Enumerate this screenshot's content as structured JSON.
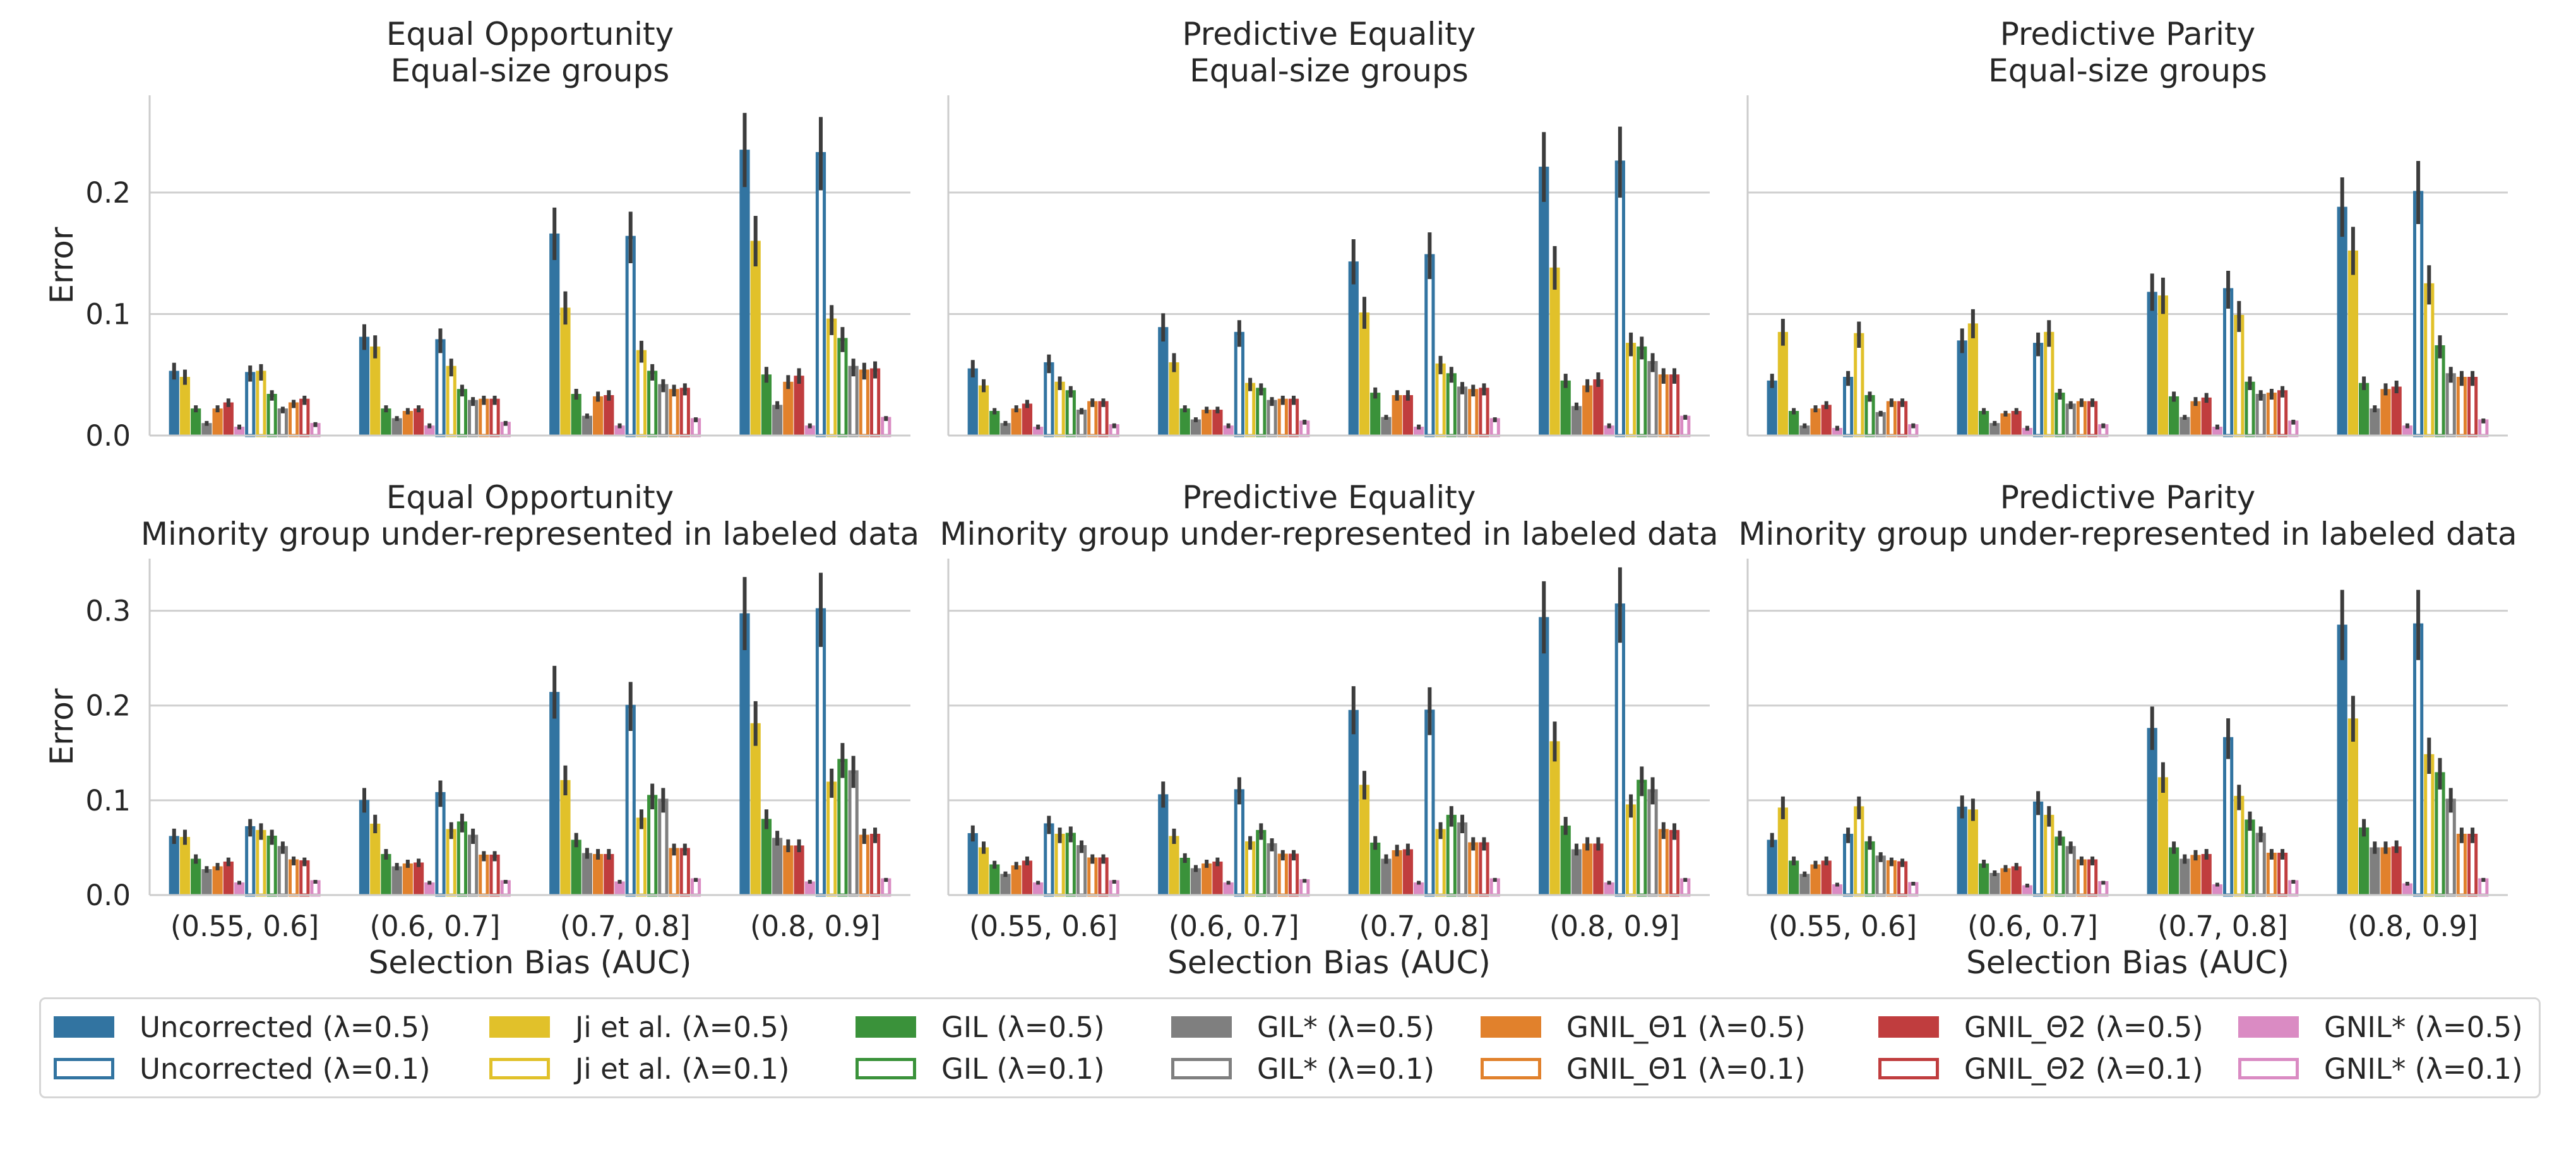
{
  "chart_data": {
    "type": "bar",
    "layout": "2x3 facet grid",
    "categories": [
      "(0.55, 0.6]",
      "(0.6, 0.7]",
      "(0.7, 0.8]",
      "(0.8, 0.9]"
    ],
    "xlabel": "Selection Bias (AUC)",
    "ylabel": "Error",
    "grid": "horizontal",
    "legend_position": "bottom",
    "rows": [
      {
        "ylim": [
          0,
          0.28
        ],
        "yticks": [
          0.0,
          0.1,
          0.2
        ],
        "ytick_labels": [
          "0.0",
          "0.1",
          "0.2"
        ]
      },
      {
        "ylim": [
          0,
          0.355
        ],
        "yticks": [
          0.0,
          0.1,
          0.2,
          0.3
        ],
        "ytick_labels": [
          "0.0",
          "0.1",
          "0.2",
          "0.3"
        ]
      }
    ],
    "series": [
      {
        "name": "Uncorrected (λ=0.5)",
        "color": "#3274a1",
        "style": "filled"
      },
      {
        "name": "Uncorrected (λ=0.1)",
        "color": "#3274a1",
        "style": "outline"
      },
      {
        "name": "Ji et al. (λ=0.5)",
        "color": "#e1c12a",
        "style": "filled"
      },
      {
        "name": "Ji et al. (λ=0.1)",
        "color": "#e1c12a",
        "style": "outline"
      },
      {
        "name": "GIL (λ=0.5)",
        "color": "#3a923a",
        "style": "filled"
      },
      {
        "name": "GIL (λ=0.1)",
        "color": "#3a923a",
        "style": "outline"
      },
      {
        "name": "GIL* (λ=0.5)",
        "color": "#7f7f7f",
        "style": "filled"
      },
      {
        "name": "GIL* (λ=0.1)",
        "color": "#7f7f7f",
        "style": "outline"
      },
      {
        "name": "GNIL_Θ1 (λ=0.5)",
        "color": "#e1812c",
        "style": "filled"
      },
      {
        "name": "GNIL_Θ1 (λ=0.1)",
        "color": "#e1812c",
        "style": "outline"
      },
      {
        "name": "GNIL_Θ2 (λ=0.5)",
        "color": "#c03d3e",
        "style": "filled"
      },
      {
        "name": "GNIL_Θ2 (λ=0.1)",
        "color": "#c03d3e",
        "style": "outline"
      },
      {
        "name": "GNIL* (λ=0.5)",
        "color": "#da8bc3",
        "style": "filled"
      },
      {
        "name": "GNIL* (λ=0.1)",
        "color": "#da8bc3",
        "style": "outline"
      }
    ],
    "panels": [
      {
        "title": [
          "Equal Opportunity",
          "Equal-size groups"
        ],
        "values": [
          [
            0.053,
            0.048,
            0.022,
            0.01,
            0.022,
            0.027,
            0.007,
            0.051,
            0.052,
            0.033,
            0.021,
            0.026,
            0.029,
            0.009
          ],
          [
            0.081,
            0.073,
            0.022,
            0.014,
            0.02,
            0.022,
            0.008,
            0.078,
            0.056,
            0.037,
            0.028,
            0.029,
            0.029,
            0.01
          ],
          [
            0.166,
            0.105,
            0.034,
            0.016,
            0.032,
            0.033,
            0.008,
            0.163,
            0.069,
            0.052,
            0.041,
            0.037,
            0.038,
            0.013
          ],
          [
            0.235,
            0.16,
            0.05,
            0.025,
            0.044,
            0.049,
            0.008,
            0.232,
            0.095,
            0.079,
            0.056,
            0.053,
            0.054,
            0.014
          ]
        ]
      },
      {
        "title": [
          "Predictive Equality",
          "Equal-size groups"
        ],
        "values": [
          [
            0.055,
            0.041,
            0.02,
            0.01,
            0.022,
            0.026,
            0.007,
            0.059,
            0.043,
            0.036,
            0.02,
            0.027,
            0.027,
            0.008
          ],
          [
            0.089,
            0.06,
            0.022,
            0.013,
            0.021,
            0.021,
            0.008,
            0.084,
            0.042,
            0.038,
            0.028,
            0.029,
            0.029,
            0.011
          ],
          [
            0.143,
            0.101,
            0.035,
            0.015,
            0.033,
            0.033,
            0.007,
            0.148,
            0.058,
            0.05,
            0.039,
            0.037,
            0.038,
            0.013
          ],
          [
            0.221,
            0.138,
            0.045,
            0.024,
            0.041,
            0.046,
            0.008,
            0.225,
            0.075,
            0.072,
            0.06,
            0.049,
            0.049,
            0.015
          ]
        ]
      },
      {
        "title": [
          "Predictive Parity",
          "Equal-size groups"
        ],
        "values": [
          [
            0.045,
            0.085,
            0.02,
            0.008,
            0.022,
            0.025,
            0.006,
            0.047,
            0.083,
            0.032,
            0.018,
            0.027,
            0.027,
            0.008
          ],
          [
            0.078,
            0.092,
            0.02,
            0.01,
            0.018,
            0.02,
            0.006,
            0.075,
            0.084,
            0.034,
            0.025,
            0.027,
            0.027,
            0.008
          ],
          [
            0.118,
            0.115,
            0.032,
            0.015,
            0.028,
            0.031,
            0.007,
            0.12,
            0.098,
            0.043,
            0.033,
            0.034,
            0.036,
            0.011
          ],
          [
            0.188,
            0.152,
            0.043,
            0.022,
            0.038,
            0.04,
            0.008,
            0.2,
            0.124,
            0.073,
            0.05,
            0.047,
            0.047,
            0.012
          ]
        ]
      },
      {
        "title": [
          "Equal Opportunity",
          "Minority group under-represented in labeled data"
        ],
        "values": [
          [
            0.062,
            0.061,
            0.038,
            0.027,
            0.03,
            0.035,
            0.013,
            0.071,
            0.067,
            0.061,
            0.05,
            0.036,
            0.035,
            0.014
          ],
          [
            0.1,
            0.075,
            0.043,
            0.03,
            0.033,
            0.034,
            0.013,
            0.107,
            0.068,
            0.076,
            0.062,
            0.041,
            0.041,
            0.014
          ],
          [
            0.214,
            0.121,
            0.058,
            0.044,
            0.043,
            0.043,
            0.014,
            0.199,
            0.08,
            0.104,
            0.1,
            0.048,
            0.048,
            0.016
          ],
          [
            0.297,
            0.181,
            0.08,
            0.06,
            0.052,
            0.052,
            0.014,
            0.301,
            0.118,
            0.142,
            0.13,
            0.062,
            0.063,
            0.016
          ]
        ]
      },
      {
        "title": [
          "Predictive Equality",
          "Minority group under-represented in labeled data"
        ],
        "values": [
          [
            0.065,
            0.05,
            0.032,
            0.022,
            0.031,
            0.036,
            0.013,
            0.074,
            0.063,
            0.064,
            0.051,
            0.038,
            0.038,
            0.014
          ],
          [
            0.106,
            0.062,
            0.039,
            0.028,
            0.033,
            0.035,
            0.013,
            0.11,
            0.055,
            0.067,
            0.053,
            0.042,
            0.042,
            0.015
          ],
          [
            0.195,
            0.116,
            0.055,
            0.038,
            0.047,
            0.048,
            0.013,
            0.194,
            0.068,
            0.083,
            0.075,
            0.054,
            0.054,
            0.016
          ],
          [
            0.293,
            0.162,
            0.073,
            0.048,
            0.054,
            0.054,
            0.013,
            0.306,
            0.094,
            0.12,
            0.11,
            0.068,
            0.067,
            0.016
          ]
        ]
      },
      {
        "title": [
          "Predictive Parity",
          "Minority group under-represented in labeled data"
        ],
        "values": [
          [
            0.058,
            0.092,
            0.036,
            0.022,
            0.032,
            0.036,
            0.011,
            0.063,
            0.092,
            0.055,
            0.04,
            0.035,
            0.034,
            0.012
          ],
          [
            0.093,
            0.09,
            0.033,
            0.023,
            0.028,
            0.03,
            0.01,
            0.097,
            0.083,
            0.06,
            0.05,
            0.036,
            0.036,
            0.013
          ],
          [
            0.176,
            0.124,
            0.05,
            0.038,
            0.042,
            0.043,
            0.011,
            0.165,
            0.103,
            0.078,
            0.064,
            0.043,
            0.043,
            0.014
          ],
          [
            0.285,
            0.186,
            0.071,
            0.05,
            0.05,
            0.051,
            0.012,
            0.285,
            0.147,
            0.128,
            0.1,
            0.063,
            0.063,
            0.016
          ]
        ]
      }
    ],
    "series_order_in_group": [
      "Uncorrected (λ=0.5)",
      "Ji et al. (λ=0.5)",
      "GIL (λ=0.5)",
      "GIL* (λ=0.5)",
      "GNIL_Θ1 (λ=0.5)",
      "GNIL_Θ2 (λ=0.5)",
      "GNIL* (λ=0.5)",
      "Uncorrected (λ=0.1)",
      "Ji et al. (λ=0.1)",
      "GIL (λ=0.1)",
      "GIL* (λ=0.1)",
      "GNIL_Θ1 (λ=0.1)",
      "GNIL_Θ2 (λ=0.1)",
      "GNIL* (λ=0.1)"
    ]
  }
}
